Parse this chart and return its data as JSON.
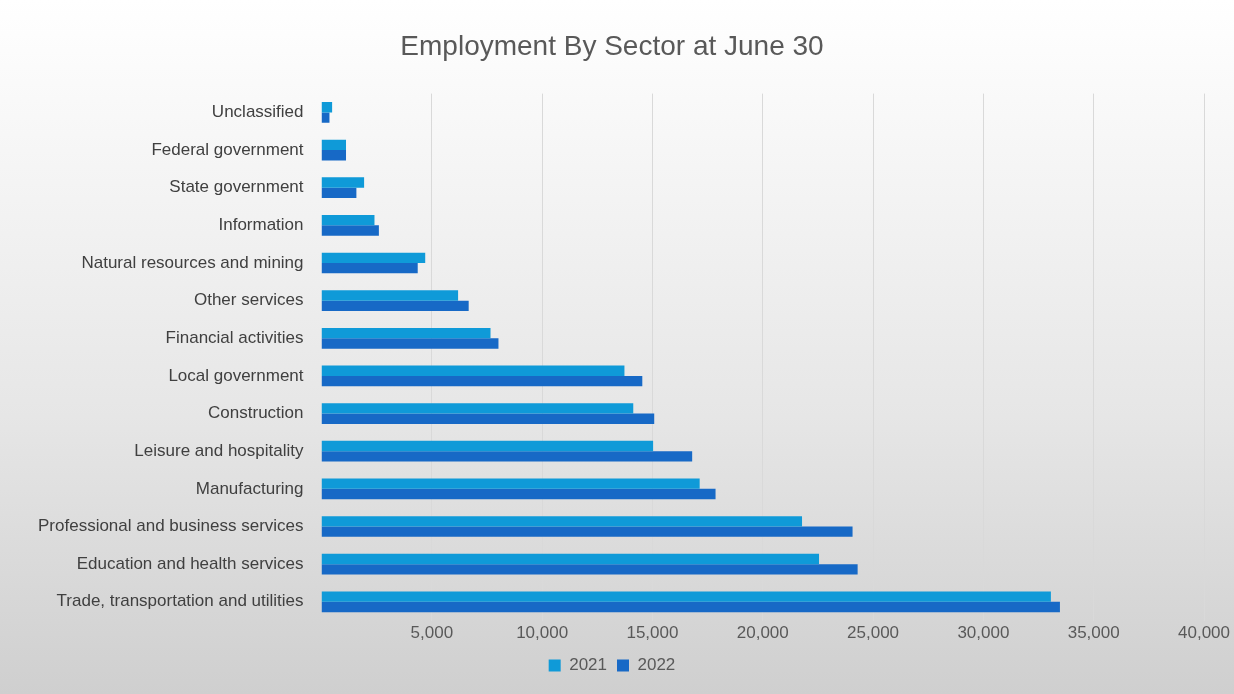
{
  "chart_data": {
    "type": "bar",
    "orientation": "horizontal",
    "title": "Employment By Sector at June 30",
    "categories": [
      "Unclassified",
      "Federal government",
      "State government",
      "Information",
      "Natural resources and mining",
      "Other services",
      "Financial activities",
      "Local government",
      "Construction",
      "Leisure and hospitality",
      "Manufacturing",
      "Professional and business services",
      "Education and health services",
      "Trade, transportation and utilities"
    ],
    "series": [
      {
        "name": "2021",
        "color": "#0f9ad8",
        "values": [
          480,
          1110,
          1930,
          2400,
          4700,
          6190,
          7660,
          13730,
          14130,
          15030,
          17140,
          21780,
          22550,
          33060
        ]
      },
      {
        "name": "2022",
        "color": "#1769c6",
        "values": [
          360,
          1110,
          1580,
          2600,
          4360,
          6670,
          8020,
          14540,
          15080,
          16800,
          17860,
          24070,
          24300,
          33470
        ]
      }
    ],
    "xlim": [
      0,
      40000
    ],
    "xticks": [
      {
        "value": 5000,
        "label": "5,000"
      },
      {
        "value": 10000,
        "label": "10,000"
      },
      {
        "value": 15000,
        "label": "15,000"
      },
      {
        "value": 20000,
        "label": "20,000"
      },
      {
        "value": 25000,
        "label": "25,000"
      },
      {
        "value": 30000,
        "label": "30,000"
      },
      {
        "value": 35000,
        "label": "35,000"
      },
      {
        "value": 40000,
        "label": "40,000"
      }
    ],
    "grid": "x",
    "legend": "bottom"
  }
}
